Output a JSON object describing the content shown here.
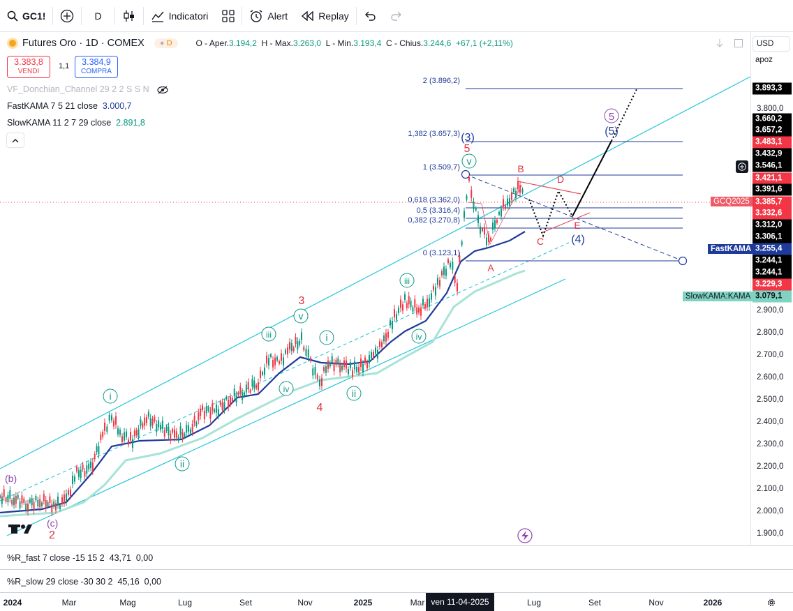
{
  "toolbar": {
    "symbol": "GC1!",
    "interval": "D",
    "indicators_label": "Indicatori",
    "alert_label": "Alert",
    "replay_label": "Replay"
  },
  "legend": {
    "title": "Futures Oro · 1D · COMEX",
    "badge": "D",
    "open_label": "O - Aper.",
    "open": "3.194,2",
    "high_label": "H - Max.",
    "high": "3.263,0",
    "low_label": "L - Min.",
    "low": "3.193,4",
    "close_label": "C - Chius.",
    "close": "3.244,6",
    "change": "+67,1 (+2,11%)"
  },
  "trade": {
    "sell_price": "3.383,8",
    "sell_label": "VENDI",
    "spread": "1,1",
    "buy_price": "3.384,9",
    "buy_label": "COMPRA"
  },
  "indicators": {
    "donchian": "VF_Donchian_Channel 29 2 2 S S N",
    "fastkama_label": "FastKAMA 7 5 21 close",
    "fastkama_value": "3.000,7",
    "slowkama_label": "SlowKAMA 11 2 7 29 close",
    "slowkama_value": "2.891,8"
  },
  "scale": {
    "currency": "USD",
    "mode": "apoz",
    "ticks": [
      "3.800,0",
      "2.900,0",
      "2.800,0",
      "2.700,0",
      "2.600,0",
      "2.500,0",
      "2.400,0",
      "2.300,0",
      "2.200,0",
      "2.100,0",
      "2.000,0",
      "1.900,0"
    ],
    "labels": [
      {
        "text": "3.893,3",
        "color": "#000000"
      },
      {
        "text": "3.660,2",
        "color": "#000000"
      },
      {
        "text": "3.657,2",
        "color": "#000000"
      },
      {
        "text": "3.483,1",
        "color": "#f23645"
      },
      {
        "text": "3.432,9",
        "color": "#000000"
      },
      {
        "text": "3.546,1",
        "color": "#000000"
      },
      {
        "text": "3.421,1",
        "color": "#f23645"
      },
      {
        "text": "3.391,6",
        "color": "#000000"
      },
      {
        "text": "3.385,7",
        "color": "#f23645"
      },
      {
        "text": "3.332,6",
        "color": "#f23645"
      },
      {
        "text": "3.312,0",
        "color": "#000000"
      },
      {
        "text": "3.306,1",
        "color": "#000000"
      },
      {
        "text": "3.255,4",
        "color": "#1e3a9a"
      },
      {
        "text": "3.244,1",
        "color": "#000000"
      },
      {
        "text": "3.244,1",
        "color": "#000000"
      },
      {
        "text": "3.229,3",
        "color": "#f23645"
      },
      {
        "text": "3.079,1",
        "color": "#7fd3c0"
      }
    ],
    "tag_gcq": "GCQ2025",
    "tag_fast": "FastKAMA",
    "tag_slow": "SlowKAMA:KAMA"
  },
  "fib": [
    {
      "text": "2 (3.896,2)"
    },
    {
      "text": "1,382 (3.657,3)"
    },
    {
      "text": "1 (3.509,7)"
    },
    {
      "text": "0,618 (3.362,0)"
    },
    {
      "text": "0,5 (3.316,4)"
    },
    {
      "text": "0,382 (3.270,8)"
    },
    {
      "text": "0 (3.123,1)"
    }
  ],
  "waves": {
    "b": "(b)",
    "c": "(c)",
    "two": "2",
    "i1": "i",
    "ii1": "ii",
    "iii1": "iii",
    "iv1": "iv",
    "v1": "v",
    "three": "3",
    "four": "4",
    "i2": "i",
    "ii2": "ii",
    "iii2": "iii",
    "iv2": "iv",
    "v2": "v",
    "five": "5",
    "paren3": "(3)",
    "A": "A",
    "B": "B",
    "C": "C",
    "D": "D",
    "E": "E",
    "paren4": "(4)",
    "five_p": "5",
    "paren5": "(5)"
  },
  "panels": {
    "rfast_label": "%R_fast 7 close -15 15 2",
    "rfast_v1": "43,71",
    "rfast_v2": "0,00",
    "rslow_label": "%R_slow 29 close -30 30 2",
    "rslow_v1": "45,16",
    "rslow_v2": "0,00"
  },
  "time_axis": {
    "ticks": [
      "2024",
      "Mar",
      "Mag",
      "Lug",
      "Set",
      "Nov",
      "2025",
      "Mar",
      "Lug",
      "Set",
      "Nov",
      "2026"
    ],
    "crosshair": "ven 11-04-2025"
  }
}
